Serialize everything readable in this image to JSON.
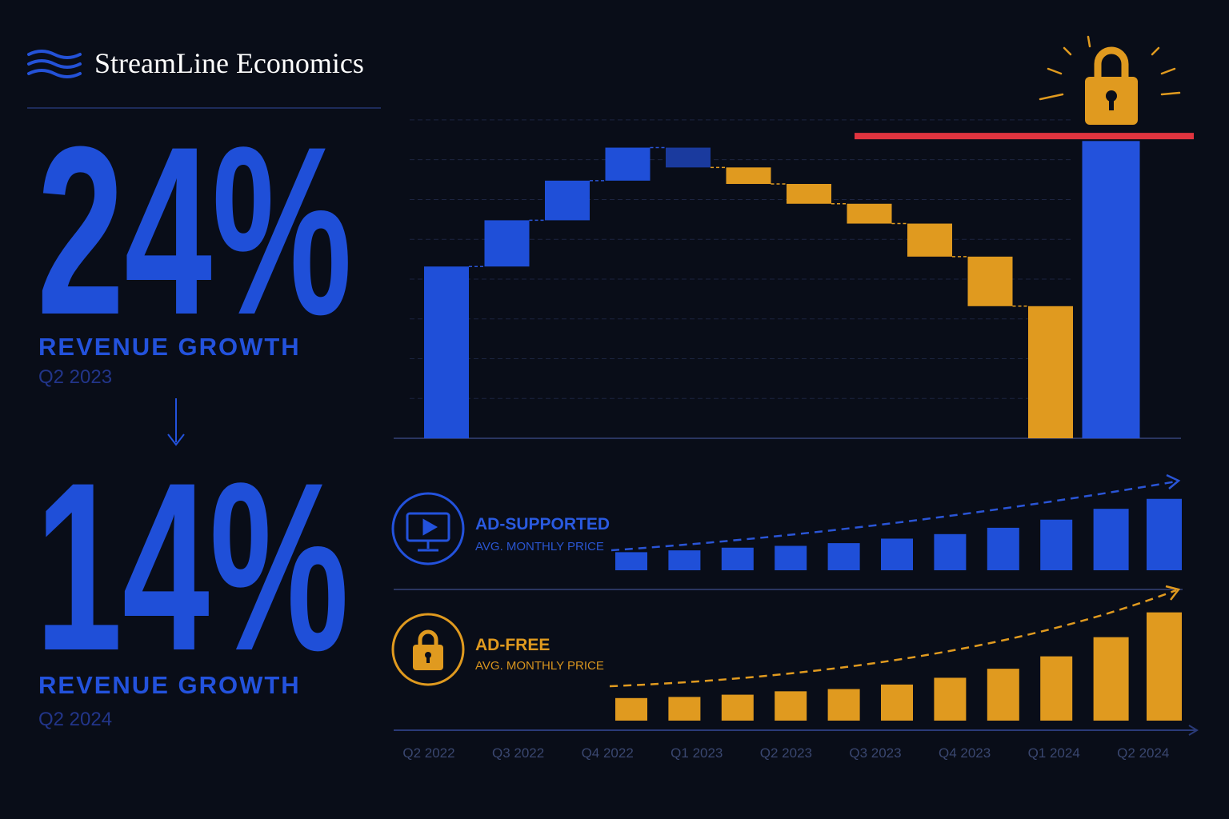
{
  "header": {
    "brand": "StreamLine Economics"
  },
  "kpis": [
    {
      "value": "24%",
      "label": "REVENUE GROWTH",
      "period": "Q2 2023"
    },
    {
      "value": "14%",
      "label": "REVENUE GROWTH",
      "period": "Q2 2024"
    }
  ],
  "timeline": [
    "Q2 2022",
    "Q3 2022",
    "Q4 2022",
    "Q1 2023",
    "Q2 2023",
    "Q3 2023",
    "Q4 2023",
    "Q1 2024",
    "Q2 2024"
  ],
  "chart_data": [
    {
      "type": "waterfall",
      "values": [
        52,
        14,
        12,
        10,
        -6,
        -5,
        -6,
        -6,
        -10,
        -15,
        40,
        90
      ],
      "measure": [
        "absolute",
        "relative",
        "relative",
        "relative",
        "relative",
        "relative",
        "relative",
        "relative",
        "relative",
        "relative",
        "total",
        "absolute"
      ],
      "colors": [
        "#1f4fd8",
        "#1f4fd8",
        "#1f4fd8",
        "#1f4fd8",
        "#1a3a9e",
        "#e09a1f",
        "#e09a1f",
        "#e09a1f",
        "#e09a1f",
        "#e09a1f",
        "#e09a1f",
        "#2352dc"
      ],
      "ylim": [
        0,
        100
      ],
      "limit_line": {
        "value": 91.5,
        "color": "#e0343f"
      },
      "grid": true
    },
    {
      "type": "bar",
      "title": "AD-SUPPORTED",
      "subtitle": "AVG. MONTHLY PRICE",
      "color": "#1f4fd8",
      "values": [
        20,
        22,
        25,
        27,
        30,
        35,
        40,
        47,
        56,
        68,
        79
      ],
      "ylim": [
        0,
        100
      ]
    },
    {
      "type": "bar",
      "title": "AD-FREE",
      "subtitle": "AVG. MONTHLY PRICE",
      "color": "#e09a1f",
      "values": [
        20,
        21,
        23,
        26,
        28,
        32,
        38,
        46,
        57,
        74,
        96
      ],
      "ylim": [
        0,
        100
      ]
    }
  ]
}
